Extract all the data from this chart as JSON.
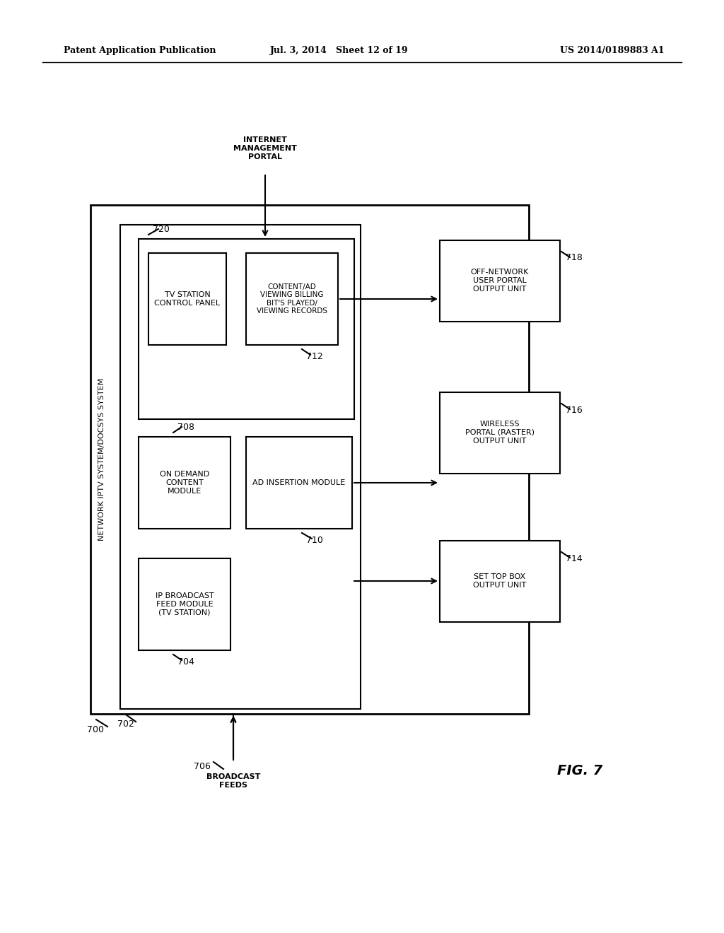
{
  "bg_color": "#ffffff",
  "header_left": "Patent Application Publication",
  "header_mid": "Jul. 3, 2014   Sheet 12 of 19",
  "header_right": "US 2014/0189883 A1",
  "fig_label": "FIG. 7",
  "outer_box_label": "NETWORK IPTV SYSTEM/DOCSYS SYSTEM",
  "outer_box_id": "700",
  "inner_box_id": "702",
  "internet_portal_label": "INTERNET\nMANAGEMENT\nPORTAL",
  "broadcast_feeds_label": "BROADCAST\nFEEDS",
  "broadcast_feeds_id": "706",
  "box_704_label": "IP BROADCAST\nFEED MODULE\n(TV STATION)",
  "box_704_id": "704",
  "box_708_label": "ON DEMAND\nCONTENT\nMODULE",
  "box_708_id": "708",
  "box_710_label": "AD INSERTION MODULE",
  "box_710_id": "710",
  "box_720_label": "TV STATION\nCONTROL PANEL",
  "box_720_id": "720",
  "box_712_label": "CONTENT/AD\nVIEWING BILLING\nBIT'S PLAYED/\nVIEWING RECORDS",
  "box_712_id": "712",
  "box_714_label": "SET TOP BOX\nOUTPUT UNIT",
  "box_714_id": "714",
  "box_716_label": "WIRELESS\nPORTAL (RASTER)\nOUTPUT UNIT",
  "box_716_id": "716",
  "box_718_label": "OFF-NETWORK\nUSER PORTAL\nOUTPUT UNIT",
  "box_718_id": "718"
}
